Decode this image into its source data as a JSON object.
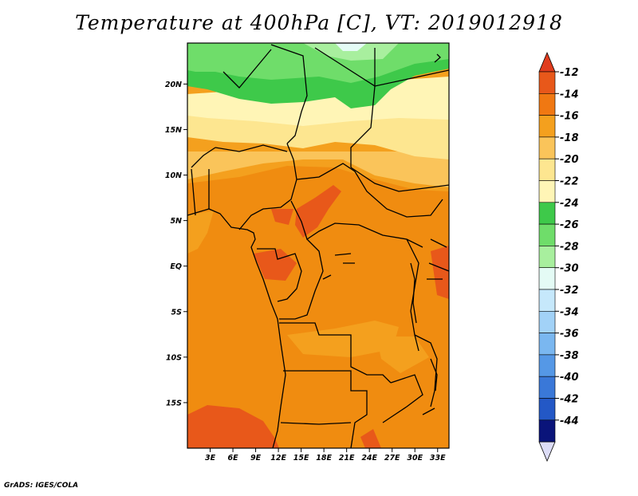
{
  "title": "Temperature at 400hPa [C], VT: 2019012918",
  "credit": "GrADS: IGES/COLA",
  "map": {
    "lat_range": [
      -20,
      24.5
    ],
    "lon_range": [
      0,
      34.5
    ],
    "lat_ticks": [
      {
        "value": 20,
        "label": "20N"
      },
      {
        "value": 15,
        "label": "15N"
      },
      {
        "value": 10,
        "label": "10N"
      },
      {
        "value": 5,
        "label": "5N"
      },
      {
        "value": 0,
        "label": "EQ"
      },
      {
        "value": -5,
        "label": "5S"
      },
      {
        "value": -10,
        "label": "10S"
      },
      {
        "value": -15,
        "label": "15S"
      }
    ],
    "lon_ticks": [
      {
        "value": 3,
        "label": "3E"
      },
      {
        "value": 6,
        "label": "6E"
      },
      {
        "value": 9,
        "label": "9E"
      },
      {
        "value": 12,
        "label": "12E"
      },
      {
        "value": 15,
        "label": "15E"
      },
      {
        "value": 18,
        "label": "18E"
      },
      {
        "value": 21,
        "label": "21E"
      },
      {
        "value": 24,
        "label": "24E"
      },
      {
        "value": 27,
        "label": "27E"
      },
      {
        "value": 30,
        "label": "30E"
      },
      {
        "value": 33,
        "label": "33E"
      }
    ]
  },
  "colorbar": {
    "levels": [
      {
        "label": "-12",
        "color": "#e8581a"
      },
      {
        "label": "-14",
        "color": "#f07812"
      },
      {
        "label": "-16",
        "color": "#f4a01e"
      },
      {
        "label": "-18",
        "color": "#fac45a"
      },
      {
        "label": "-20",
        "color": "#fde690"
      },
      {
        "label": "-22",
        "color": "#fff5b6"
      },
      {
        "label": "-24",
        "color": "#3ec94a"
      },
      {
        "label": "-26",
        "color": "#6fdd6a"
      },
      {
        "label": "-28",
        "color": "#a8ef9e"
      },
      {
        "label": "-30",
        "color": "#e4fbf5"
      },
      {
        "label": "-32",
        "color": "#c6e8fb"
      },
      {
        "label": "-34",
        "color": "#a2d2f7"
      },
      {
        "label": "-36",
        "color": "#7ab7f0"
      },
      {
        "label": "-38",
        "color": "#5598e6"
      },
      {
        "label": "-40",
        "color": "#3a78d8"
      },
      {
        "label": "-42",
        "color": "#2358c6"
      },
      {
        "label": "-44",
        "color": "#0f3aa8"
      }
    ],
    "top_arrow_color": "#e03c1e",
    "bottom_box_color": "#0a147a",
    "bottom_arrow_color": "#dcdcf6"
  }
}
